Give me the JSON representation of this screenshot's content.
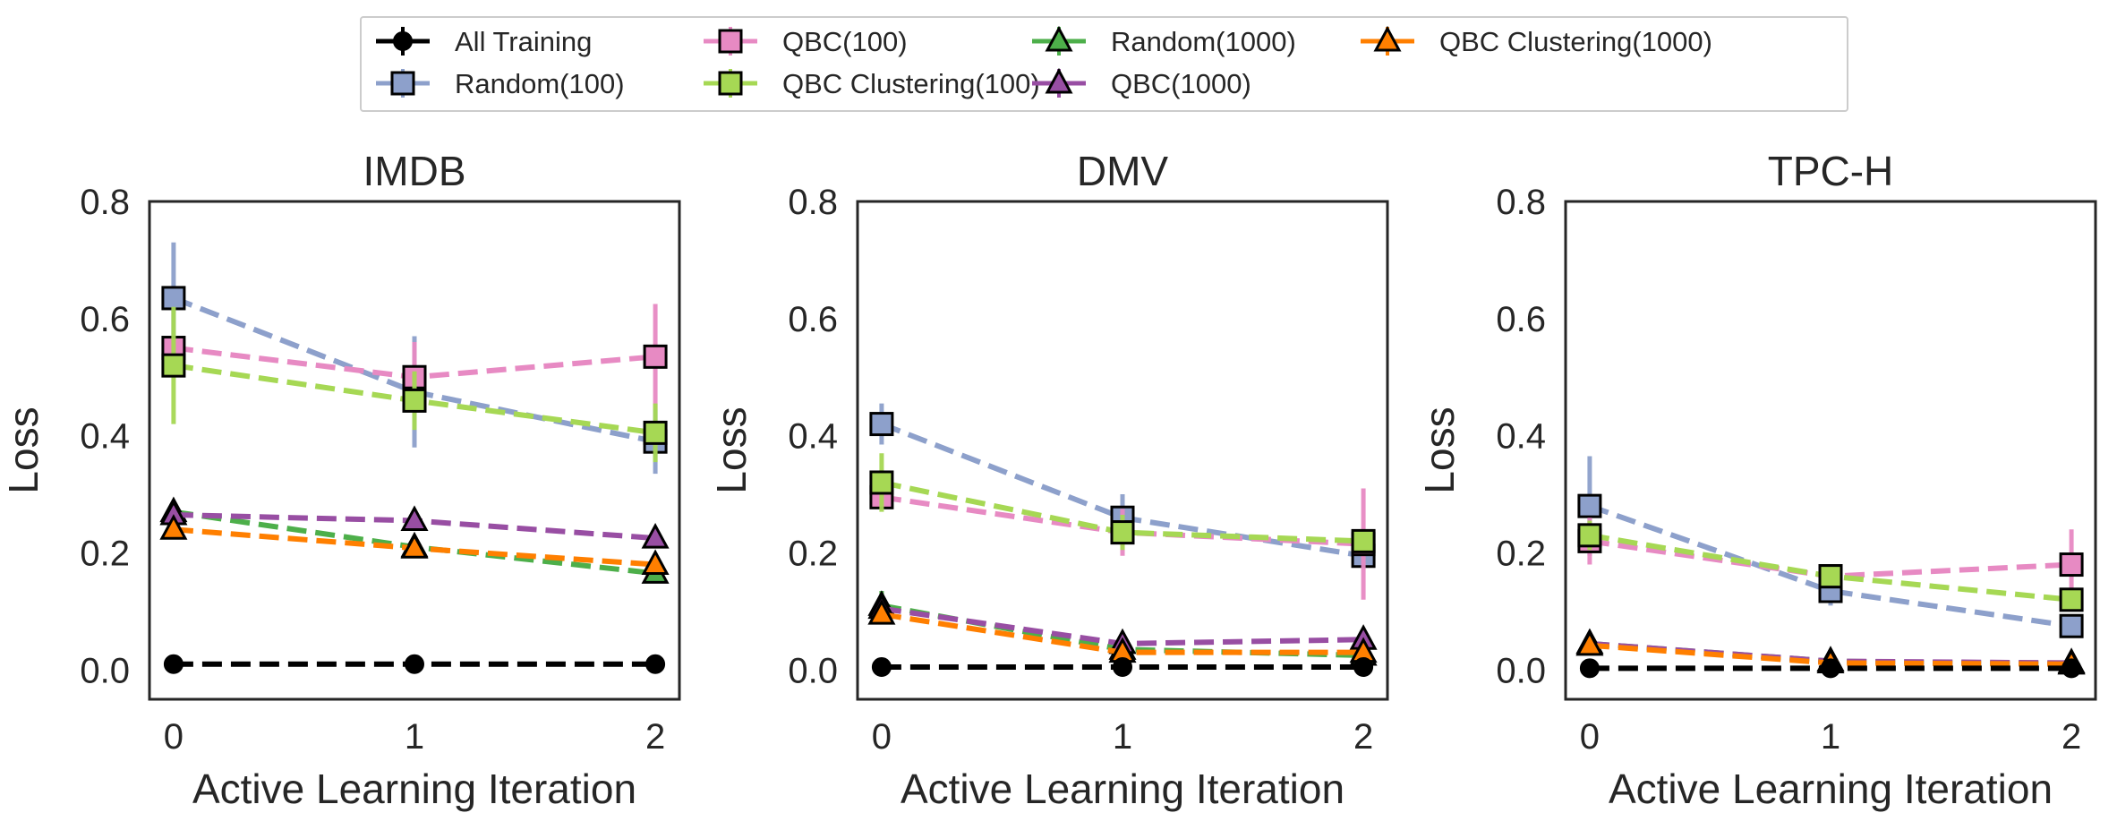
{
  "legend": {
    "entries": [
      {
        "name": "All Training",
        "color": "#000000",
        "marker": "circle",
        "dashed": true
      },
      {
        "name": "Random(100)",
        "color": "#8DA0CB",
        "marker": "square",
        "dashed": true
      },
      {
        "name": "QBC(100)",
        "color": "#E78AC3",
        "marker": "square",
        "dashed": true
      },
      {
        "name": "QBC Clustering(100)",
        "color": "#A6D854",
        "marker": "square",
        "dashed": true
      },
      {
        "name": "Random(1000)",
        "color": "#4DAF4A",
        "marker": "triangle",
        "dashed": false
      },
      {
        "name": "QBC(1000)",
        "color": "#984EA3",
        "marker": "triangle",
        "dashed": false
      },
      {
        "name": "QBC Clustering(1000)",
        "color": "#FF7F00",
        "marker": "triangle",
        "dashed": false
      }
    ]
  },
  "chart_data": [
    {
      "type": "line",
      "title": "IMDB",
      "xlabel": "Active Learning Iteration",
      "ylabel": "Loss",
      "x": [
        0,
        1,
        2
      ],
      "xticks": [
        "0",
        "1",
        "2"
      ],
      "yticks": [
        "0.0",
        "0.2",
        "0.4",
        "0.6",
        "0.8"
      ],
      "xlim": [
        -0.1,
        2.1
      ],
      "ylim": [
        -0.05,
        0.8
      ],
      "series": [
        {
          "name": "Random(1000)",
          "values": [
            0.27,
            0.21,
            0.165
          ],
          "err": [
            0.015,
            0.01,
            0.01
          ]
        },
        {
          "name": "QBC(1000)",
          "values": [
            0.265,
            0.255,
            0.225
          ],
          "err": [
            0.01,
            0.01,
            0.01
          ]
        },
        {
          "name": "QBC Clustering(1000)",
          "values": [
            0.24,
            0.208,
            0.18
          ],
          "err": [
            0.01,
            0.01,
            0.01
          ]
        },
        {
          "name": "All Training",
          "values": [
            0.01,
            0.01,
            0.01
          ],
          "err": [
            0,
            0,
            0
          ]
        },
        {
          "name": "Random(100)",
          "values": [
            0.635,
            0.475,
            0.39
          ],
          "err": [
            0.095,
            0.095,
            0.055
          ]
        },
        {
          "name": "QBC(100)",
          "values": [
            0.55,
            0.5,
            0.535
          ],
          "err": [
            0.02,
            0.06,
            0.09
          ]
        },
        {
          "name": "QBC Clustering(100)",
          "values": [
            0.52,
            0.46,
            0.405
          ],
          "err": [
            0.1,
            0.05,
            0.05
          ]
        }
      ]
    },
    {
      "type": "line",
      "title": "DMV",
      "xlabel": "Active Learning Iteration",
      "ylabel": "Loss",
      "x": [
        0,
        1,
        2
      ],
      "xticks": [
        "0",
        "1",
        "2"
      ],
      "yticks": [
        "0.0",
        "0.2",
        "0.4",
        "0.6",
        "0.8"
      ],
      "xlim": [
        -0.1,
        2.1
      ],
      "ylim": [
        -0.05,
        0.8
      ],
      "series": [
        {
          "name": "Random(1000)",
          "values": [
            0.11,
            0.035,
            0.025
          ],
          "err": [
            0.025,
            0.01,
            0.01
          ]
        },
        {
          "name": "QBC(1000)",
          "values": [
            0.105,
            0.045,
            0.052
          ],
          "err": [
            0.01,
            0.01,
            0.01
          ]
        },
        {
          "name": "QBC Clustering(1000)",
          "values": [
            0.095,
            0.03,
            0.03
          ],
          "err": [
            0.01,
            0.01,
            0.01
          ]
        },
        {
          "name": "All Training",
          "values": [
            0.005,
            0.005,
            0.005
          ],
          "err": [
            0,
            0,
            0
          ]
        },
        {
          "name": "Random(100)",
          "values": [
            0.42,
            0.26,
            0.195
          ],
          "err": [
            0.035,
            0.04,
            0.02
          ]
        },
        {
          "name": "QBC(100)",
          "values": [
            0.295,
            0.235,
            0.215
          ],
          "err": [
            0.015,
            0.04,
            0.095
          ]
        },
        {
          "name": "QBC Clustering(100)",
          "values": [
            0.32,
            0.235,
            0.22
          ],
          "err": [
            0.05,
            0.03,
            0.02
          ]
        }
      ]
    },
    {
      "type": "line",
      "title": "TPC-H",
      "xlabel": "Active Learning Iteration",
      "ylabel": "Loss",
      "x": [
        0,
        1,
        2
      ],
      "xticks": [
        "0",
        "1",
        "2"
      ],
      "yticks": [
        "0.0",
        "0.2",
        "0.4",
        "0.6",
        "0.8"
      ],
      "xlim": [
        -0.1,
        2.1
      ],
      "ylim": [
        -0.05,
        0.8
      ],
      "series": [
        {
          "name": "Random(1000)",
          "values": [
            0.045,
            0.015,
            0.01
          ],
          "err": [
            0.01,
            0.005,
            0.005
          ]
        },
        {
          "name": "QBC(1000)",
          "values": [
            0.045,
            0.015,
            0.012
          ],
          "err": [
            0.01,
            0.005,
            0.005
          ]
        },
        {
          "name": "QBC Clustering(1000)",
          "values": [
            0.042,
            0.012,
            0.01
          ],
          "err": [
            0.01,
            0.005,
            0.005
          ]
        },
        {
          "name": "All Training",
          "values": [
            0.003,
            0.003,
            0.003
          ],
          "err": [
            0,
            0,
            0
          ]
        },
        {
          "name": "Random(100)",
          "values": [
            0.28,
            0.135,
            0.075
          ],
          "err": [
            0.085,
            0.025,
            0.015
          ]
        },
        {
          "name": "QBC(100)",
          "values": [
            0.22,
            0.16,
            0.18
          ],
          "err": [
            0.04,
            0.02,
            0.06
          ]
        },
        {
          "name": "QBC Clustering(100)",
          "values": [
            0.23,
            0.16,
            0.12
          ],
          "err": [
            0.025,
            0.015,
            0.02
          ]
        }
      ]
    }
  ]
}
